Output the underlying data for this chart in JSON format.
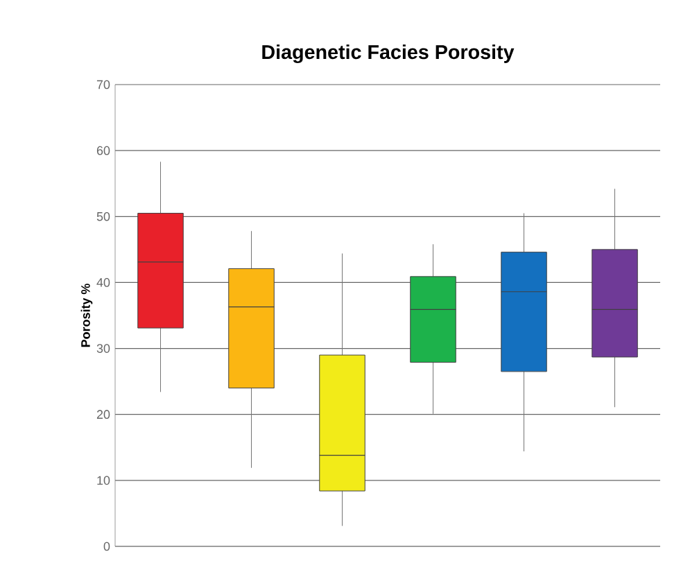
{
  "chart_data": {
    "type": "box",
    "title": "Diagenetic Facies Porosity",
    "ylabel": "Porosity %",
    "categories": [
      null,
      null,
      null,
      null,
      null,
      null
    ],
    "boxes": [
      {
        "low": 23.4,
        "q1": 33.1,
        "median": 43.1,
        "q3": 50.5,
        "high": 58.3
      },
      {
        "low": 11.9,
        "q1": 24.0,
        "median": 36.3,
        "q3": 42.1,
        "high": 47.8
      },
      {
        "low": 3.1,
        "q1": 8.4,
        "median": 13.8,
        "q3": 29.0,
        "high": 44.4
      },
      {
        "low": 20.1,
        "q1": 27.9,
        "median": 35.9,
        "q3": 40.9,
        "high": 45.8
      },
      {
        "low": 14.4,
        "q1": 26.5,
        "median": 38.6,
        "q3": 44.6,
        "high": 50.5
      },
      {
        "low": 21.1,
        "q1": 28.7,
        "median": 35.9,
        "q3": 45.0,
        "high": 54.2
      }
    ],
    "colors": [
      "#e8212a",
      "#fbb612",
      "#f2eb18",
      "#1db24b",
      "#1470bf",
      "#6f3a97"
    ],
    "ylim": [
      0,
      70
    ],
    "yticks": [
      0,
      10,
      20,
      30,
      40,
      50,
      60,
      70
    ],
    "grid": "y",
    "tick_labels": "y"
  }
}
